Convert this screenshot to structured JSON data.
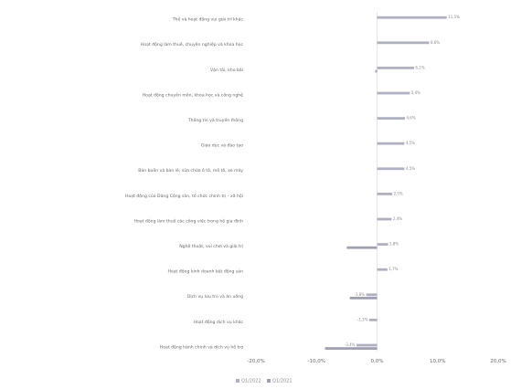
{
  "chart_data": {
    "type": "bar",
    "orientation": "horizontal",
    "title": "",
    "xlabel": "",
    "ylabel": "",
    "categories": [
      "Thể và hoạt động vui giải trí khác",
      "Hoạt động làm thuê, chuyên nghiệp và khoa học",
      "Vận tải, kho bãi",
      "Hoạt động chuyên môn, khoa học và công nghệ",
      "Thông tin và truyền thông",
      "Giáo dục và đào tạo",
      "Bán buôn và bán lẻ; sửa chữa ô tô, mô tô, xe máy",
      "Hoạt động của Đảng Cộng sản, tổ chức chính trị - xã hội",
      "Hoạt động làm thuê các công việc trong hộ gia đình",
      "Nghệ thuật, vui chơi và giải trí",
      "Hoạt động kinh doanh bất động sản",
      "Dịch vụ lưu trú và ăn uống",
      "Hoạt động dịch vụ khác",
      "Hoạt động hành chính và dịch vụ hỗ trợ"
    ],
    "series": [
      {
        "values": [
          11.5,
          8.6,
          6.1,
          5.4,
          4.6,
          4.5,
          4.5,
          2.5,
          2.4,
          1.8,
          1.7,
          -1.8,
          -1.3,
          -3.4
        ],
        "labels": [
          "11,5%",
          "8,6%",
          "6,1%",
          "5,4%",
          "4,6%",
          "4,5%",
          "4,5%",
          "2,5%",
          "2,4%",
          "1,8%",
          "1,7%",
          "-1,8%",
          "-1,3%",
          "-3,4%"
        ],
        "color": "#b0b0c4"
      },
      {
        "values": [
          0.0,
          0.0,
          -0.3,
          0.0,
          0.0,
          0.0,
          0.0,
          0.0,
          0.0,
          -5.0,
          0.0,
          -4.5,
          0.0,
          -8.6
        ],
        "labels": [
          "",
          "",
          "",
          "",
          "",
          "",
          "",
          "",
          "",
          "",
          "",
          "",
          "",
          ""
        ],
        "color": "#a0a0b4"
      }
    ],
    "xlim": [
      -20,
      20
    ],
    "xticks": [
      -20,
      -10,
      0,
      10,
      20
    ],
    "xtick_labels": [
      "-20,0%",
      "-10,0%",
      "0,0%",
      "10,0%",
      "20,0%"
    ],
    "grid": false,
    "legend": {
      "placement": "bottom-left",
      "entries": [
        "Q1/2022",
        "Q1/2021"
      ]
    }
  },
  "colors": {
    "bar_primary": "#b0b0c4",
    "bar_secondary": "#a0a0b4",
    "text": "#666666",
    "axis": "#cccccc"
  }
}
